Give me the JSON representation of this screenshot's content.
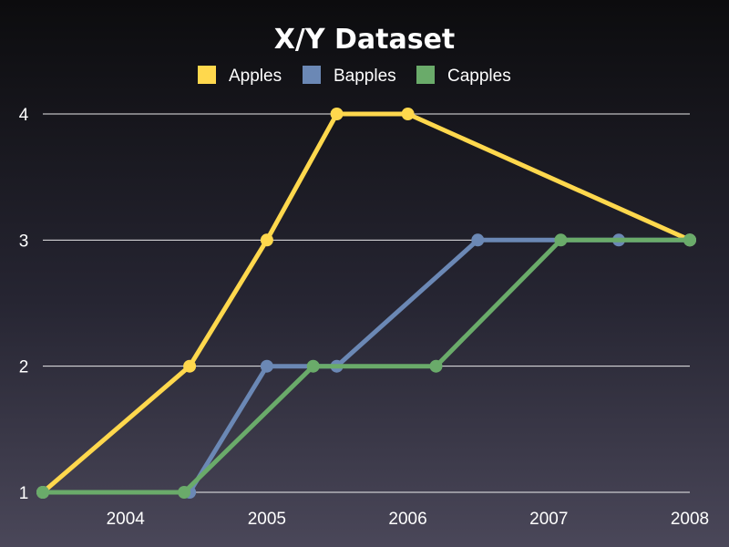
{
  "chart_data": {
    "type": "line",
    "title": "X/Y Dataset",
    "xlabel": "",
    "ylabel": "",
    "x_axis": "date",
    "xlim": [
      "2003-06-01",
      "2008-01-01"
    ],
    "x_ticks": [
      "2004",
      "2005",
      "2006",
      "2007",
      "2008"
    ],
    "ylim": [
      1,
      4
    ],
    "y_ticks": [
      "1",
      "2",
      "3",
      "4"
    ],
    "grid": "horizontal",
    "legend_position": "top-center",
    "series": [
      {
        "name": "Apples",
        "color": "#ffd84d",
        "points": [
          {
            "x": "2003-06-01",
            "y": 1
          },
          {
            "x": "2004-06-15",
            "y": 2
          },
          {
            "x": "2005-01-01",
            "y": 3
          },
          {
            "x": "2005-07-01",
            "y": 4
          },
          {
            "x": "2006-01-01",
            "y": 4
          },
          {
            "x": "2008-01-01",
            "y": 3
          }
        ]
      },
      {
        "name": "Bapples",
        "color": "#6b88b5",
        "points": [
          {
            "x": "2003-06-01",
            "y": 1
          },
          {
            "x": "2004-06-15",
            "y": 1
          },
          {
            "x": "2005-01-01",
            "y": 2
          },
          {
            "x": "2005-07-01",
            "y": 2
          },
          {
            "x": "2006-07-01",
            "y": 3
          },
          {
            "x": "2007-07-01",
            "y": 3
          },
          {
            "x": "2008-01-01",
            "y": 3
          }
        ]
      },
      {
        "name": "Capples",
        "color": "#6aab6a",
        "points": [
          {
            "x": "2003-06-01",
            "y": 1
          },
          {
            "x": "2004-06-01",
            "y": 1
          },
          {
            "x": "2005-05-01",
            "y": 2
          },
          {
            "x": "2006-03-15",
            "y": 2
          },
          {
            "x": "2007-02-01",
            "y": 3
          },
          {
            "x": "2008-01-01",
            "y": 3
          }
        ]
      }
    ]
  }
}
